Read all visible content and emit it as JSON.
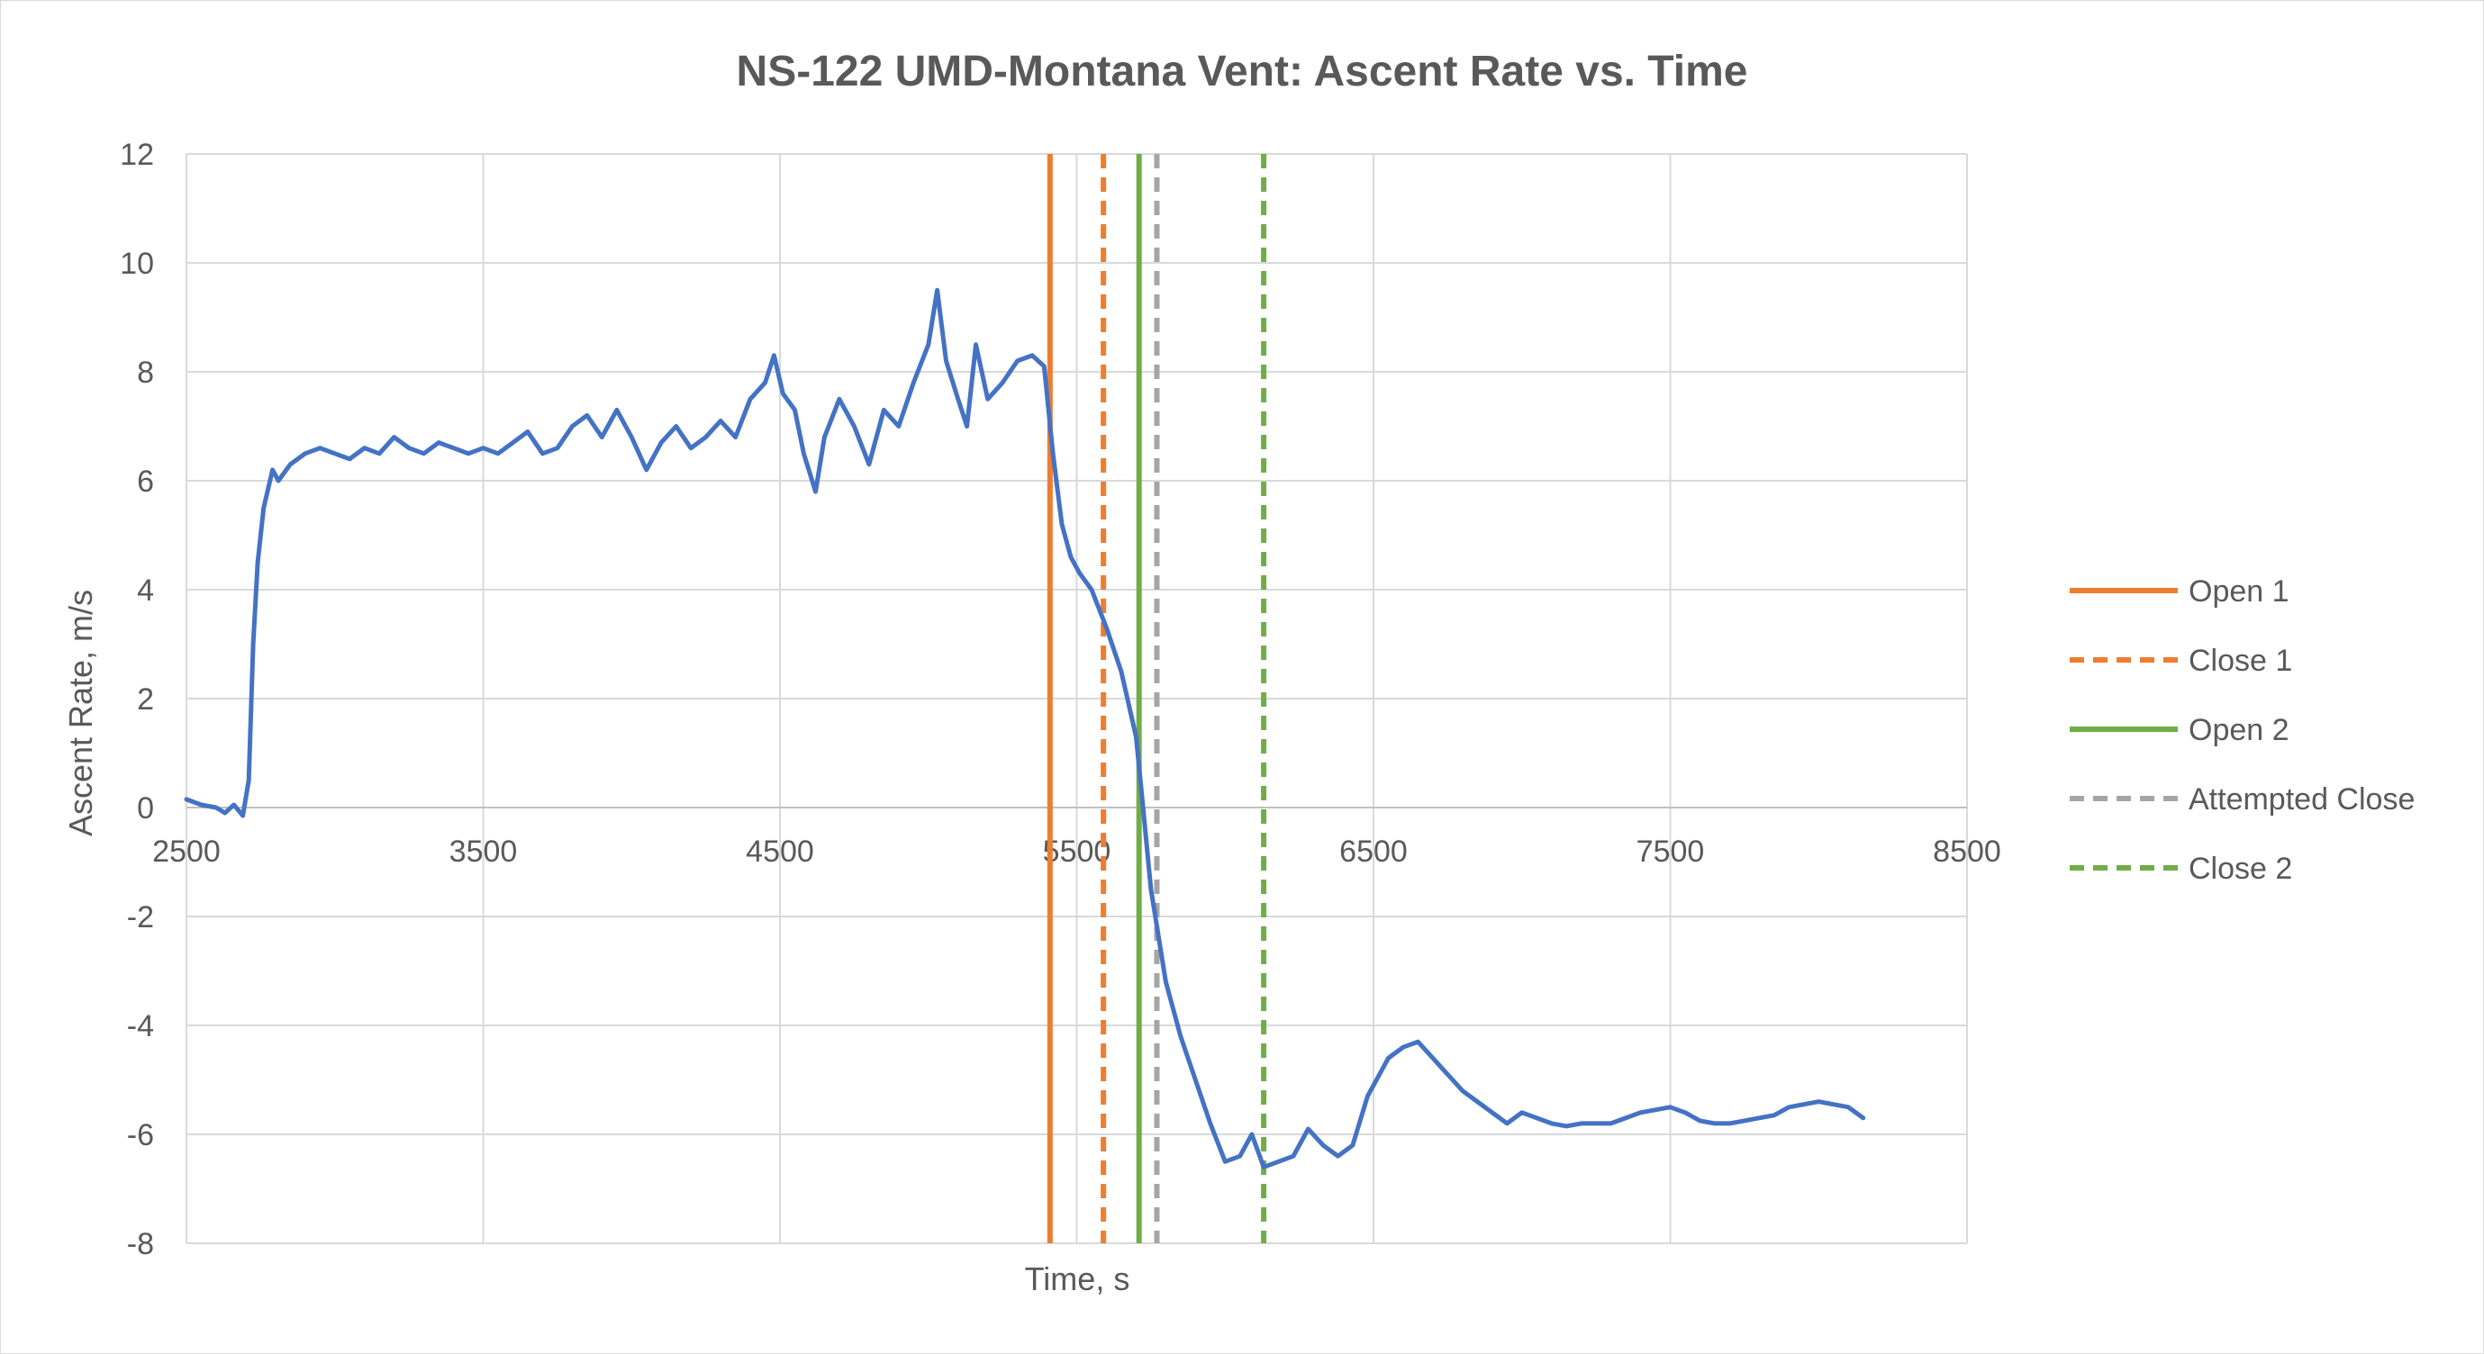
{
  "chart_data": {
    "type": "line",
    "title": "NS-122 UMD-Montana Vent: Ascent Rate vs. Time",
    "xlabel": "Time, s",
    "ylabel": "Ascent Rate, m/s",
    "xlim": [
      2500,
      8500
    ],
    "ylim": [
      -8,
      12
    ],
    "x_ticks": [
      2500,
      3500,
      4500,
      5500,
      6500,
      7500,
      8500
    ],
    "y_ticks": [
      12,
      10,
      8,
      6,
      4,
      2,
      0,
      -2,
      -4,
      -6,
      -8
    ],
    "grid": true,
    "legend_position": "right",
    "series": [
      {
        "color": "#4472c4",
        "points": [
          [
            2500,
            0.15
          ],
          [
            2550,
            0.05
          ],
          [
            2600,
            0.0
          ],
          [
            2630,
            -0.1
          ],
          [
            2660,
            0.05
          ],
          [
            2690,
            -0.15
          ],
          [
            2710,
            0.5
          ],
          [
            2725,
            3.0
          ],
          [
            2740,
            4.5
          ],
          [
            2760,
            5.5
          ],
          [
            2790,
            6.2
          ],
          [
            2810,
            6.0
          ],
          [
            2850,
            6.3
          ],
          [
            2900,
            6.5
          ],
          [
            2950,
            6.6
          ],
          [
            3000,
            6.5
          ],
          [
            3050,
            6.4
          ],
          [
            3100,
            6.6
          ],
          [
            3150,
            6.5
          ],
          [
            3200,
            6.8
          ],
          [
            3250,
            6.6
          ],
          [
            3300,
            6.5
          ],
          [
            3350,
            6.7
          ],
          [
            3400,
            6.6
          ],
          [
            3450,
            6.5
          ],
          [
            3500,
            6.6
          ],
          [
            3550,
            6.5
          ],
          [
            3600,
            6.7
          ],
          [
            3650,
            6.9
          ],
          [
            3700,
            6.5
          ],
          [
            3750,
            6.6
          ],
          [
            3800,
            7.0
          ],
          [
            3850,
            7.2
          ],
          [
            3900,
            6.8
          ],
          [
            3950,
            7.3
          ],
          [
            4000,
            6.8
          ],
          [
            4050,
            6.2
          ],
          [
            4100,
            6.7
          ],
          [
            4150,
            7.0
          ],
          [
            4200,
            6.6
          ],
          [
            4250,
            6.8
          ],
          [
            4300,
            7.1
          ],
          [
            4350,
            6.8
          ],
          [
            4400,
            7.5
          ],
          [
            4450,
            7.8
          ],
          [
            4480,
            8.3
          ],
          [
            4510,
            7.6
          ],
          [
            4550,
            7.3
          ],
          [
            4580,
            6.5
          ],
          [
            4620,
            5.8
          ],
          [
            4650,
            6.8
          ],
          [
            4700,
            7.5
          ],
          [
            4750,
            7.0
          ],
          [
            4800,
            6.3
          ],
          [
            4850,
            7.3
          ],
          [
            4900,
            7.0
          ],
          [
            4950,
            7.8
          ],
          [
            5000,
            8.5
          ],
          [
            5030,
            9.5
          ],
          [
            5060,
            8.2
          ],
          [
            5100,
            7.5
          ],
          [
            5130,
            7.0
          ],
          [
            5160,
            8.5
          ],
          [
            5200,
            7.5
          ],
          [
            5250,
            7.8
          ],
          [
            5300,
            8.2
          ],
          [
            5350,
            8.3
          ],
          [
            5390,
            8.1
          ],
          [
            5420,
            6.5
          ],
          [
            5450,
            5.2
          ],
          [
            5480,
            4.6
          ],
          [
            5510,
            4.3
          ],
          [
            5550,
            4.0
          ],
          [
            5600,
            3.3
          ],
          [
            5650,
            2.5
          ],
          [
            5700,
            1.3
          ],
          [
            5720,
            0.2
          ],
          [
            5750,
            -1.5
          ],
          [
            5800,
            -3.2
          ],
          [
            5850,
            -4.2
          ],
          [
            5900,
            -5.0
          ],
          [
            5950,
            -5.8
          ],
          [
            6000,
            -6.5
          ],
          [
            6050,
            -6.4
          ],
          [
            6090,
            -6.0
          ],
          [
            6130,
            -6.6
          ],
          [
            6180,
            -6.5
          ],
          [
            6230,
            -6.4
          ],
          [
            6280,
            -5.9
          ],
          [
            6330,
            -6.2
          ],
          [
            6380,
            -6.4
          ],
          [
            6430,
            -6.2
          ],
          [
            6480,
            -5.3
          ],
          [
            6550,
            -4.6
          ],
          [
            6600,
            -4.4
          ],
          [
            6650,
            -4.3
          ],
          [
            6700,
            -4.6
          ],
          [
            6750,
            -4.9
          ],
          [
            6800,
            -5.2
          ],
          [
            6850,
            -5.4
          ],
          [
            6900,
            -5.6
          ],
          [
            6950,
            -5.8
          ],
          [
            7000,
            -5.6
          ],
          [
            7050,
            -5.7
          ],
          [
            7100,
            -5.8
          ],
          [
            7150,
            -5.85
          ],
          [
            7200,
            -5.8
          ],
          [
            7300,
            -5.8
          ],
          [
            7400,
            -5.6
          ],
          [
            7500,
            -5.5
          ],
          [
            7550,
            -5.6
          ],
          [
            7600,
            -5.75
          ],
          [
            7650,
            -5.8
          ],
          [
            7700,
            -5.8
          ],
          [
            7750,
            -5.75
          ],
          [
            7800,
            -5.7
          ],
          [
            7850,
            -5.65
          ],
          [
            7900,
            -5.5
          ],
          [
            7950,
            -5.45
          ],
          [
            8000,
            -5.4
          ],
          [
            8050,
            -5.45
          ],
          [
            8100,
            -5.5
          ],
          [
            8150,
            -5.7
          ]
        ]
      }
    ],
    "event_lines": [
      {
        "name": "Open 1",
        "x": 5410,
        "color": "#ed7d31",
        "dashed": false
      },
      {
        "name": "Close 1",
        "x": 5590,
        "color": "#ed7d31",
        "dashed": true
      },
      {
        "name": "Open 2",
        "x": 5710,
        "color": "#70ad47",
        "dashed": false
      },
      {
        "name": "Attempted Close",
        "x": 5770,
        "color": "#a5a5a5",
        "dashed": true
      },
      {
        "name": "Close 2",
        "x": 6130,
        "color": "#70ad47",
        "dashed": true
      }
    ],
    "x_gridlines_extra": [
      5500
    ]
  }
}
